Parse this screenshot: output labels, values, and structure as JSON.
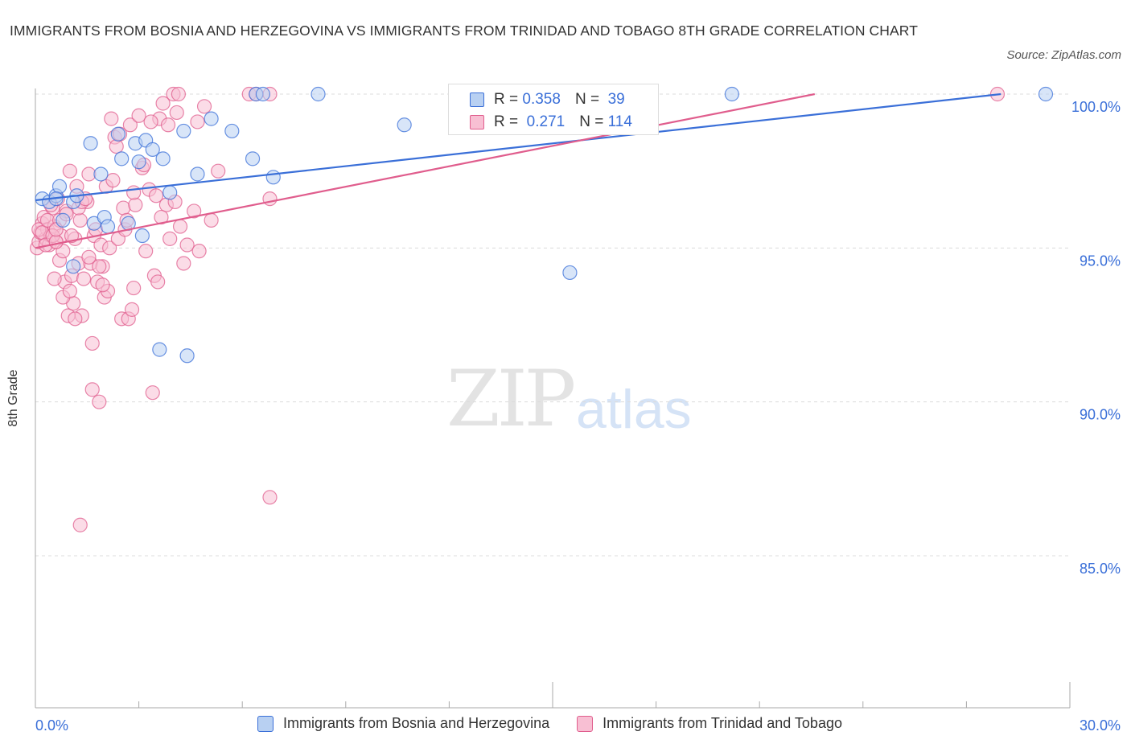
{
  "chart_data": {
    "type": "scatter",
    "title": "IMMIGRANTS FROM BOSNIA AND HERZEGOVINA VS IMMIGRANTS FROM TRINIDAD AND TOBAGO 8TH GRADE CORRELATION CHART",
    "source": "Source: ZipAtlas.com",
    "ylabel": "8th Grade",
    "xlim": [
      0,
      30
    ],
    "ylim": [
      80.3,
      100.5
    ],
    "x_tick_labels": [
      "0.0%",
      "30.0%"
    ],
    "y_ticks": [
      100,
      95,
      90,
      85
    ],
    "y_tick_labels": [
      "100.0%",
      "95.0%",
      "90.0%",
      "85.0%"
    ],
    "watermark": [
      "ZIP",
      "atlas"
    ],
    "colors": {
      "blue": "#3a6fd8",
      "blue_fill": "#b8d0f2",
      "pink": "#e05d8d",
      "pink_fill": "#f8bfd3"
    },
    "series": [
      {
        "name": "Immigrants from Bosnia and Herzegovina",
        "R_label": "R =",
        "R": "0.358",
        "N_label": "N =",
        "N": "39",
        "trend": [
          [
            0,
            96.55
          ],
          [
            28,
            100.0
          ]
        ],
        "points": [
          [
            0.2,
            96.6
          ],
          [
            0.4,
            96.5
          ],
          [
            0.6,
            96.7
          ],
          [
            0.7,
            97.0
          ],
          [
            0.8,
            95.9
          ],
          [
            1.1,
            96.5
          ],
          [
            1.2,
            96.7
          ],
          [
            1.1,
            94.4
          ],
          [
            1.6,
            98.4
          ],
          [
            1.7,
            95.8
          ],
          [
            1.9,
            97.4
          ],
          [
            2.0,
            96.0
          ],
          [
            2.1,
            95.7
          ],
          [
            2.4,
            98.7
          ],
          [
            2.5,
            97.9
          ],
          [
            2.7,
            95.8
          ],
          [
            2.9,
            98.4
          ],
          [
            3.0,
            97.8
          ],
          [
            3.2,
            98.5
          ],
          [
            3.1,
            95.4
          ],
          [
            3.4,
            98.2
          ],
          [
            3.7,
            97.9
          ],
          [
            3.9,
            96.8
          ],
          [
            4.3,
            98.8
          ],
          [
            4.7,
            97.4
          ],
          [
            4.4,
            91.5
          ],
          [
            5.1,
            99.2
          ],
          [
            5.7,
            98.8
          ],
          [
            6.3,
            97.9
          ],
          [
            6.4,
            100.0
          ],
          [
            6.6,
            100.0
          ],
          [
            6.9,
            97.3
          ],
          [
            8.2,
            100.0
          ],
          [
            10.7,
            99.0
          ],
          [
            15.5,
            94.2
          ],
          [
            20.2,
            100.0
          ],
          [
            29.3,
            100.0
          ],
          [
            3.6,
            91.7
          ],
          [
            0.6,
            96.6
          ]
        ],
        "legend": "Immigrants from Bosnia and Herzegovina"
      },
      {
        "name": "Immigrants from Trinidad and Tobago",
        "R_label": "R =",
        "R": "0.271",
        "N_label": "N =",
        "N": "114",
        "trend": [
          [
            0,
            95.0
          ],
          [
            22.6,
            100.0
          ]
        ],
        "points": [
          [
            0.05,
            95.0
          ],
          [
            0.1,
            95.2
          ],
          [
            0.15,
            95.5
          ],
          [
            0.2,
            95.8
          ],
          [
            0.25,
            96.0
          ],
          [
            0.3,
            95.3
          ],
          [
            0.35,
            95.6
          ],
          [
            0.4,
            95.1
          ],
          [
            0.45,
            95.4
          ],
          [
            0.5,
            96.3
          ],
          [
            0.55,
            95.7
          ],
          [
            0.6,
            95.2
          ],
          [
            0.65,
            96.6
          ],
          [
            0.7,
            94.6
          ],
          [
            0.75,
            95.4
          ],
          [
            0.8,
            94.9
          ],
          [
            0.85,
            93.9
          ],
          [
            0.9,
            96.2
          ],
          [
            0.95,
            92.8
          ],
          [
            1.0,
            97.5
          ],
          [
            1.05,
            94.1
          ],
          [
            1.1,
            93.2
          ],
          [
            1.15,
            95.3
          ],
          [
            1.2,
            97.0
          ],
          [
            1.25,
            94.5
          ],
          [
            1.3,
            95.9
          ],
          [
            1.35,
            92.8
          ],
          [
            1.4,
            94.0
          ],
          [
            1.5,
            96.5
          ],
          [
            1.55,
            97.4
          ],
          [
            1.6,
            94.5
          ],
          [
            1.65,
            91.9
          ],
          [
            1.7,
            95.4
          ],
          [
            1.75,
            95.6
          ],
          [
            1.8,
            93.9
          ],
          [
            1.85,
            90.0
          ],
          [
            1.9,
            95.1
          ],
          [
            1.95,
            94.4
          ],
          [
            2.0,
            93.4
          ],
          [
            2.05,
            97.0
          ],
          [
            2.1,
            93.6
          ],
          [
            2.15,
            95.0
          ],
          [
            2.2,
            99.2
          ],
          [
            2.3,
            98.6
          ],
          [
            2.35,
            98.3
          ],
          [
            2.4,
            95.3
          ],
          [
            2.5,
            92.7
          ],
          [
            2.55,
            96.3
          ],
          [
            2.6,
            95.6
          ],
          [
            2.7,
            92.7
          ],
          [
            2.75,
            99.0
          ],
          [
            2.8,
            93.0
          ],
          [
            2.85,
            93.7
          ],
          [
            2.9,
            96.4
          ],
          [
            3.0,
            99.3
          ],
          [
            3.1,
            97.6
          ],
          [
            3.2,
            94.9
          ],
          [
            3.3,
            96.9
          ],
          [
            3.4,
            90.3
          ],
          [
            3.45,
            94.1
          ],
          [
            3.5,
            96.7
          ],
          [
            3.55,
            93.9
          ],
          [
            3.6,
            99.2
          ],
          [
            3.7,
            99.7
          ],
          [
            3.8,
            96.4
          ],
          [
            3.9,
            95.3
          ],
          [
            4.0,
            100.0
          ],
          [
            4.05,
            96.5
          ],
          [
            4.1,
            99.4
          ],
          [
            4.2,
            95.7
          ],
          [
            4.3,
            94.5
          ],
          [
            4.4,
            95.1
          ],
          [
            4.6,
            96.2
          ],
          [
            4.7,
            99.1
          ],
          [
            4.75,
            94.9
          ],
          [
            4.9,
            99.6
          ],
          [
            5.1,
            95.9
          ],
          [
            5.3,
            97.5
          ],
          [
            6.2,
            100.0
          ],
          [
            6.4,
            100.0
          ],
          [
            6.8,
            100.0
          ],
          [
            6.8,
            96.6
          ],
          [
            6.8,
            86.9
          ],
          [
            0.1,
            95.6
          ],
          [
            0.2,
            95.5
          ],
          [
            0.3,
            95.1
          ],
          [
            0.35,
            95.9
          ],
          [
            0.45,
            96.4
          ],
          [
            0.5,
            95.4
          ],
          [
            0.55,
            94.0
          ],
          [
            0.6,
            95.2
          ],
          [
            0.7,
            95.9
          ],
          [
            0.8,
            93.4
          ],
          [
            0.9,
            96.1
          ],
          [
            1.0,
            93.6
          ],
          [
            1.05,
            95.4
          ],
          [
            1.15,
            92.7
          ],
          [
            1.25,
            96.3
          ],
          [
            1.35,
            96.5
          ],
          [
            1.45,
            96.6
          ],
          [
            1.55,
            94.7
          ],
          [
            1.65,
            90.4
          ],
          [
            1.85,
            94.4
          ],
          [
            1.95,
            93.8
          ],
          [
            2.25,
            97.2
          ],
          [
            2.45,
            98.7
          ],
          [
            2.65,
            95.9
          ],
          [
            2.85,
            96.8
          ],
          [
            3.15,
            97.7
          ],
          [
            3.35,
            99.1
          ],
          [
            3.65,
            96.0
          ],
          [
            3.85,
            99.0
          ],
          [
            4.15,
            100.0
          ],
          [
            1.3,
            86.0
          ],
          [
            27.9,
            100.0
          ],
          [
            0.6,
            95.6
          ]
        ],
        "legend": "Immigrants from Trinidad and Tobago"
      }
    ]
  }
}
